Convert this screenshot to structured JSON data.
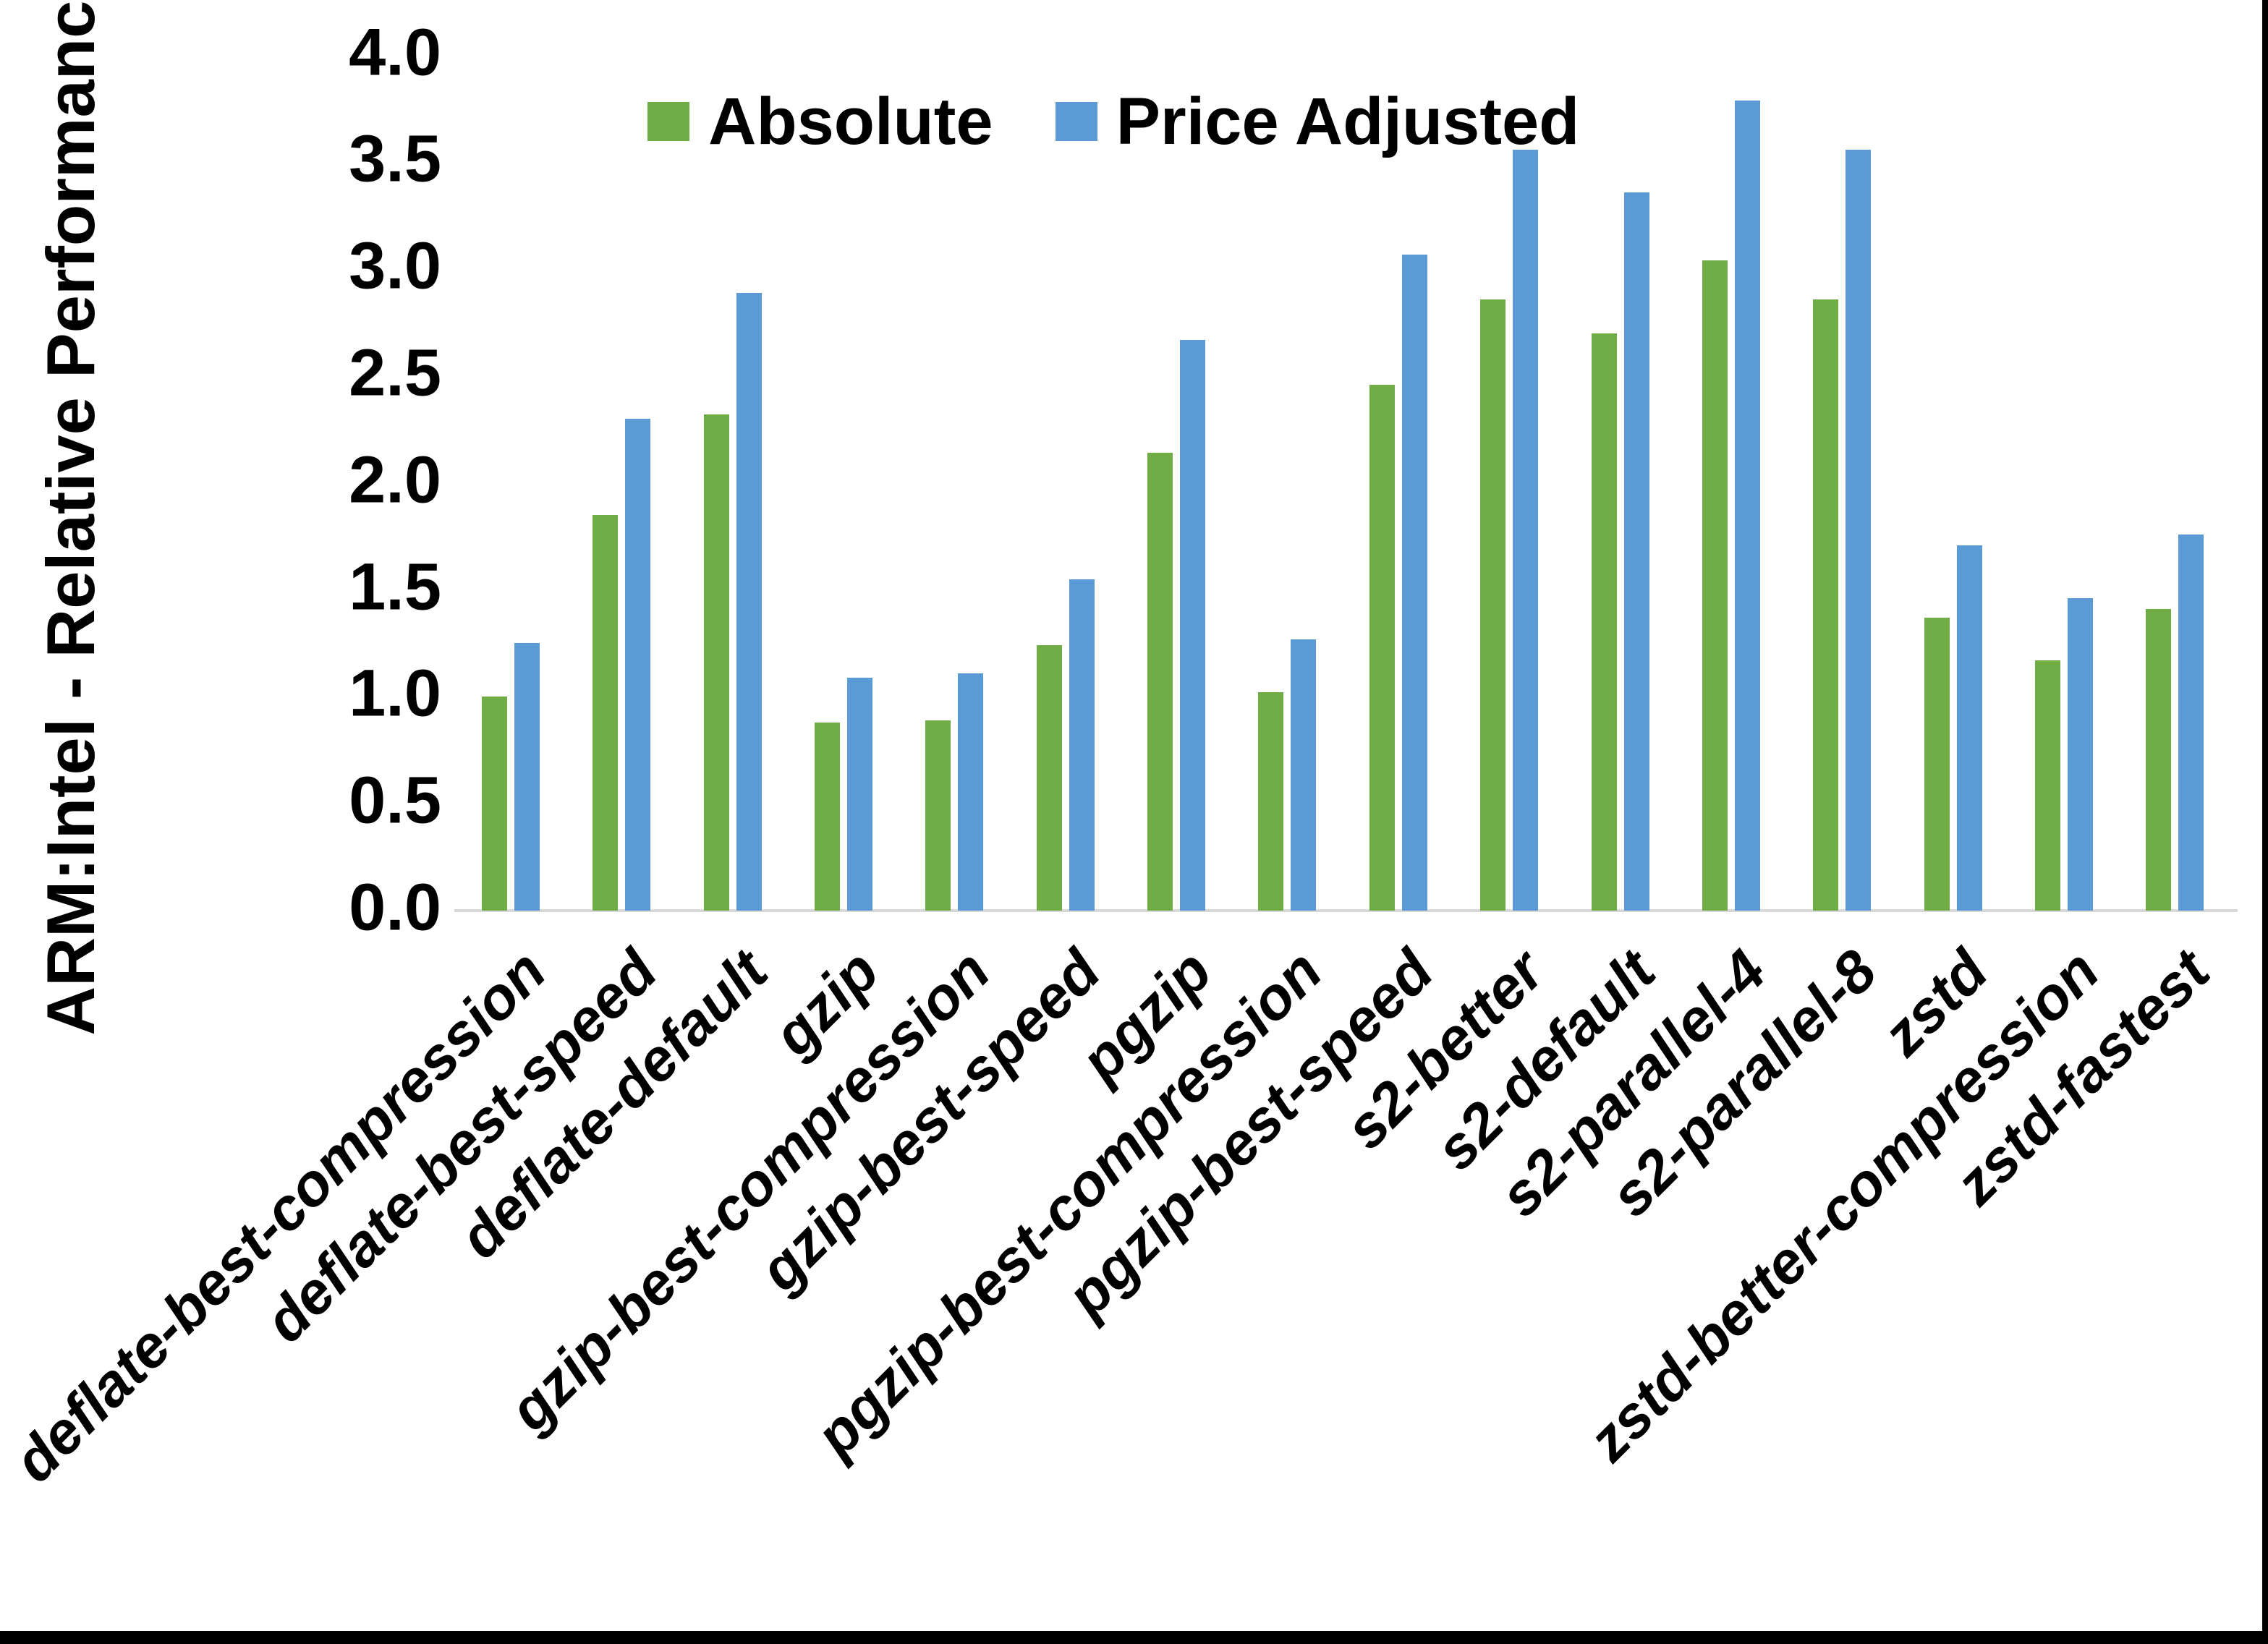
{
  "chart_data": {
    "type": "bar",
    "title": "",
    "ylabel": "ARM:Intel - Relative Performance",
    "xlabel": "",
    "ylim": [
      0.0,
      4.0
    ],
    "ytick_step": 0.5,
    "yticks": [
      "4.0",
      "3.5",
      "3.0",
      "2.5",
      "2.0",
      "1.5",
      "1.0",
      "0.5",
      "0.0"
    ],
    "grid": false,
    "legend_position": "top-center",
    "axis_line_color": "#D9D9D9",
    "categories": [
      "deflate-best-compression",
      "deflate-best-speed",
      "deflate-default",
      "gzip",
      "gzip-best-compression",
      "gzip-best-speed",
      "pgzip",
      "pgzip-best-compression",
      "pgzip-best-speed",
      "s2-better",
      "s2-default",
      "s2-parallel-4",
      "s2-parallel-8",
      "zstd",
      "zstd-better-compression",
      "zstd-fastest"
    ],
    "series": [
      {
        "name": "Absolute",
        "color": "#70AD47",
        "values": [
          1.0,
          1.85,
          2.32,
          0.88,
          0.89,
          1.24,
          2.14,
          1.02,
          2.46,
          2.86,
          2.7,
          3.04,
          2.86,
          1.37,
          1.17,
          1.41
        ]
      },
      {
        "name": "Price Adjusted",
        "color": "#5B9BD5",
        "values": [
          1.25,
          2.3,
          2.89,
          1.09,
          1.11,
          1.55,
          2.67,
          1.27,
          3.07,
          3.56,
          3.36,
          3.79,
          3.56,
          1.71,
          1.46,
          1.76
        ]
      }
    ]
  }
}
